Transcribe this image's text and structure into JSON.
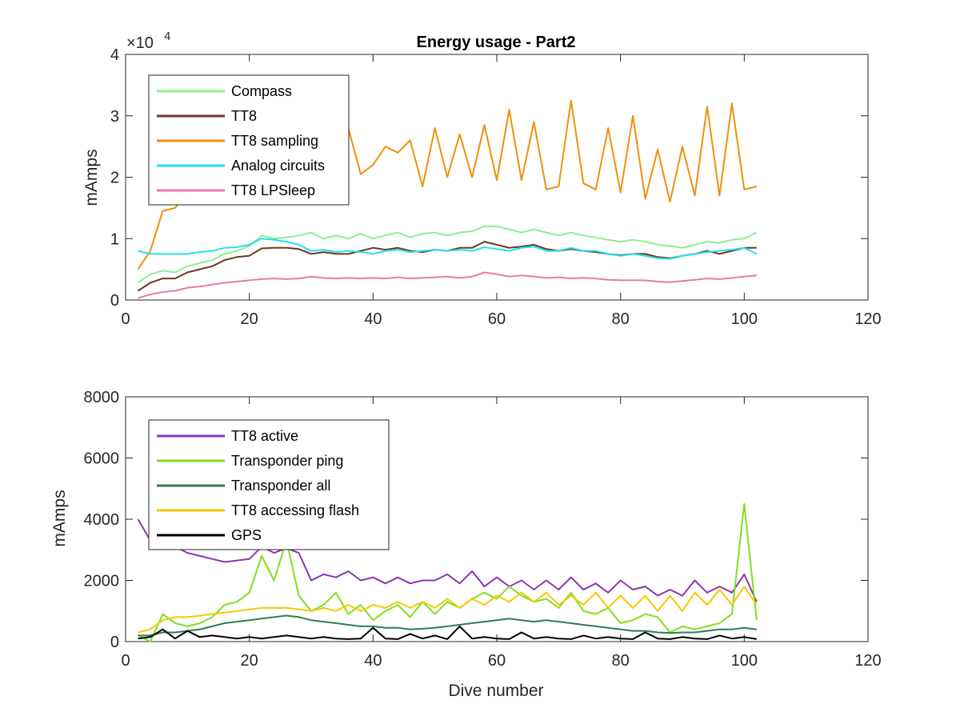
{
  "chart_data": [
    {
      "type": "line",
      "title": "Energy usage - Part2",
      "xlabel": "",
      "ylabel": "mAmps",
      "y_exponent_label": "×10",
      "y_exponent": "4",
      "xlim": [
        0,
        120
      ],
      "ylim": [
        0,
        40000
      ],
      "xticks": [
        0,
        20,
        40,
        60,
        80,
        100,
        120
      ],
      "yticks": [
        0,
        10000,
        20000,
        30000,
        40000
      ],
      "ytick_labels": [
        "0",
        "1",
        "2",
        "3",
        "4"
      ],
      "grid": false,
      "legend_position": "top-left",
      "x": [
        2,
        4,
        6,
        8,
        10,
        12,
        14,
        16,
        18,
        20,
        22,
        24,
        26,
        28,
        30,
        32,
        34,
        36,
        38,
        40,
        42,
        44,
        46,
        48,
        50,
        52,
        54,
        56,
        58,
        60,
        62,
        64,
        66,
        68,
        70,
        72,
        74,
        76,
        78,
        80,
        82,
        84,
        86,
        88,
        90,
        92,
        94,
        96,
        98,
        100,
        102
      ],
      "series": [
        {
          "name": "Compass",
          "color": "#90ee90",
          "values": [
            2800,
            4200,
            4800,
            4500,
            5500,
            6000,
            6500,
            7500,
            8000,
            8800,
            10500,
            10000,
            10200,
            10500,
            11000,
            10000,
            10500,
            10000,
            10800,
            10000,
            10500,
            11000,
            10200,
            10800,
            11000,
            10500,
            11000,
            11200,
            12000,
            12000,
            11500,
            11000,
            11500,
            11000,
            10500,
            11000,
            10500,
            10200,
            9800,
            9500,
            9800,
            9500,
            9000,
            8800,
            8500,
            9000,
            9500,
            9300,
            9800,
            10000,
            11000
          ]
        },
        {
          "name": "TT8",
          "color": "#6b3a1f",
          "values": [
            1500,
            2800,
            3500,
            3500,
            4500,
            5000,
            5500,
            6500,
            7000,
            7200,
            8400,
            8500,
            8500,
            8300,
            7500,
            7800,
            7500,
            7500,
            8000,
            8500,
            8200,
            8500,
            8000,
            7800,
            8200,
            8000,
            8500,
            8500,
            9500,
            9000,
            8500,
            8700,
            9000,
            8300,
            8000,
            8300,
            8000,
            7800,
            7500,
            7300,
            7500,
            7500,
            7000,
            6800,
            7200,
            7500,
            8000,
            7500,
            8000,
            8500,
            8500
          ]
        },
        {
          "name": "TT8 sampling",
          "color": "#f0900a",
          "values": [
            5000,
            8000,
            14500,
            15000,
            17500,
            19000,
            20000,
            21000,
            21500,
            22000,
            24000,
            25000,
            26000,
            20000,
            22000,
            24500,
            22500,
            28000,
            20500,
            22000,
            25000,
            24000,
            26000,
            18500,
            28000,
            20000,
            27000,
            20000,
            28500,
            19500,
            31000,
            19500,
            29000,
            18000,
            18500,
            32500,
            19000,
            18000,
            28000,
            17500,
            30000,
            16500,
            24500,
            16000,
            25000,
            17000,
            31500,
            17000,
            32000,
            18000,
            18500
          ]
        },
        {
          "name": "Analog circuits",
          "color": "#22e0f0",
          "values": [
            8000,
            7500,
            7500,
            7500,
            7500,
            7800,
            8000,
            8500,
            8600,
            9000,
            10000,
            9800,
            9500,
            9000,
            8000,
            8200,
            7800,
            8000,
            7800,
            7500,
            8000,
            8200,
            7800,
            8000,
            8200,
            8000,
            8200,
            8000,
            8600,
            8300,
            8000,
            8500,
            8700,
            8000,
            8000,
            8500,
            8000,
            8000,
            7500,
            7200,
            7500,
            7200,
            6800,
            6700,
            7200,
            7500,
            7800,
            8000,
            8200,
            8500,
            7500
          ]
        },
        {
          "name": "TT8 LPSleep",
          "color": "#e878b0",
          "values": [
            300,
            900,
            1300,
            1500,
            2000,
            2200,
            2500,
            2800,
            3000,
            3200,
            3400,
            3500,
            3400,
            3500,
            3800,
            3600,
            3500,
            3600,
            3500,
            3600,
            3500,
            3700,
            3500,
            3600,
            3700,
            3800,
            3600,
            3800,
            4500,
            4200,
            3800,
            4000,
            3800,
            3600,
            3700,
            3500,
            3600,
            3500,
            3300,
            3200,
            3200,
            3200,
            3000,
            2900,
            3100,
            3300,
            3500,
            3400,
            3600,
            3800,
            4000
          ]
        }
      ]
    },
    {
      "type": "line",
      "title": "",
      "xlabel": "Dive number",
      "ylabel": "mAmps",
      "xlim": [
        0,
        120
      ],
      "ylim": [
        0,
        8000
      ],
      "xticks": [
        0,
        20,
        40,
        60,
        80,
        100,
        120
      ],
      "yticks": [
        0,
        2000,
        4000,
        6000,
        8000
      ],
      "ytick_labels": [
        "0",
        "2000",
        "4000",
        "6000",
        "8000"
      ],
      "grid": false,
      "legend_position": "top-left",
      "x": [
        2,
        4,
        6,
        8,
        10,
        12,
        14,
        16,
        18,
        20,
        22,
        24,
        26,
        28,
        30,
        32,
        34,
        36,
        38,
        40,
        42,
        44,
        46,
        48,
        50,
        52,
        54,
        56,
        58,
        60,
        62,
        64,
        66,
        68,
        70,
        72,
        74,
        76,
        78,
        80,
        82,
        84,
        86,
        88,
        90,
        92,
        94,
        96,
        98,
        100,
        102
      ],
      "series": [
        {
          "name": "TT8 active",
          "color": "#8b36b0",
          "values": [
            4000,
            3300,
            3300,
            3100,
            2900,
            2800,
            2700,
            2600,
            2650,
            2700,
            3100,
            2900,
            3050,
            2900,
            2000,
            2200,
            2100,
            2300,
            2000,
            2100,
            1900,
            2100,
            1900,
            2000,
            2000,
            2200,
            1900,
            2300,
            1800,
            2100,
            1800,
            2000,
            1700,
            2000,
            1700,
            2100,
            1700,
            1900,
            1600,
            2000,
            1700,
            1800,
            1500,
            1700,
            1500,
            2000,
            1600,
            1800,
            1600,
            2200,
            1300
          ]
        },
        {
          "name": "Transponder ping",
          "color": "#7fe020",
          "values": [
            200,
            0,
            900,
            600,
            500,
            600,
            800,
            1200,
            1300,
            1600,
            2800,
            2000,
            3300,
            1500,
            1000,
            1200,
            1600,
            900,
            1200,
            700,
            1000,
            1200,
            800,
            1300,
            900,
            1300,
            1100,
            1400,
            1600,
            1400,
            1800,
            1500,
            1300,
            1400,
            1100,
            1600,
            1000,
            900,
            1100,
            600,
            700,
            900,
            800,
            300,
            500,
            400,
            500,
            600,
            900,
            4500,
            700
          ]
        },
        {
          "name": "Transponder all",
          "color": "#2e7d52",
          "values": [
            200,
            200,
            300,
            300,
            350,
            400,
            500,
            600,
            650,
            700,
            750,
            800,
            850,
            800,
            700,
            650,
            600,
            550,
            500,
            500,
            450,
            450,
            400,
            420,
            450,
            500,
            550,
            600,
            650,
            700,
            750,
            700,
            650,
            700,
            650,
            600,
            550,
            500,
            450,
            400,
            350,
            350,
            300,
            280,
            300,
            300,
            350,
            400,
            400,
            450,
            400
          ]
        },
        {
          "name": "TT8 accessing flash",
          "color": "#f5c800",
          "values": [
            300,
            400,
            700,
            800,
            800,
            850,
            900,
            950,
            1000,
            1050,
            1100,
            1100,
            1100,
            1050,
            1000,
            1100,
            1000,
            1200,
            1000,
            1200,
            1100,
            1300,
            1100,
            1300,
            1100,
            1400,
            1100,
            1400,
            1200,
            1500,
            1300,
            1600,
            1300,
            1600,
            1200,
            1500,
            1200,
            1600,
            1100,
            1500,
            1100,
            1500,
            1000,
            1500,
            1000,
            1600,
            1200,
            1700,
            1200,
            1800,
            1200
          ]
        },
        {
          "name": "GPS",
          "color": "#000000",
          "values": [
            100,
            150,
            400,
            100,
            350,
            150,
            200,
            150,
            100,
            150,
            100,
            150,
            200,
            150,
            100,
            150,
            100,
            80,
            100,
            450,
            100,
            80,
            250,
            100,
            200,
            80,
            500,
            100,
            150,
            100,
            80,
            300,
            100,
            150,
            100,
            80,
            200,
            100,
            150,
            100,
            80,
            300,
            100,
            80,
            150,
            100,
            80,
            200,
            100,
            150,
            80
          ]
        }
      ]
    }
  ]
}
